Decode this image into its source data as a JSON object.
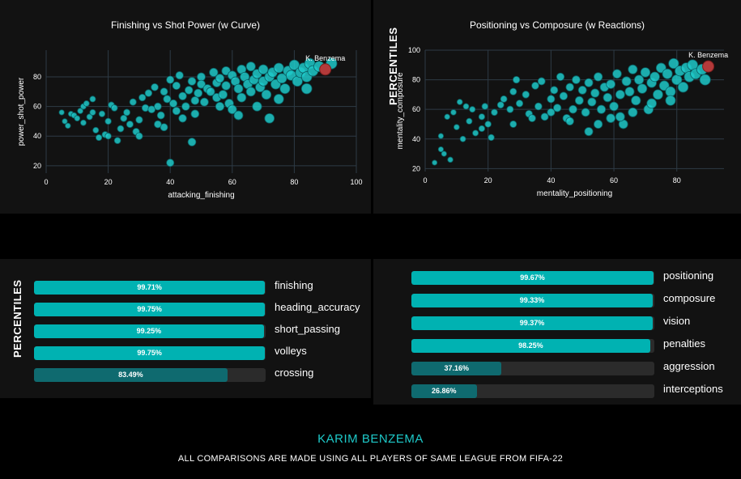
{
  "chart_data": [
    {
      "type": "scatter",
      "title": "Finishing vs Shot Power (w Curve)",
      "xlabel": "attacking_finishing",
      "ylabel": "power_shot_power",
      "xlim": [
        0,
        100
      ],
      "ylim": [
        15,
        98
      ],
      "xticks": [
        0,
        20,
        40,
        60,
        80,
        100
      ],
      "yticks": [
        20,
        40,
        60,
        80
      ],
      "grid": true,
      "highlight": {
        "label": "K. Benzema",
        "x": 90,
        "y": 85,
        "color": "#b33a3a"
      },
      "point_color": "#1ec9c9",
      "points": [
        [
          5,
          56
        ],
        [
          6,
          50
        ],
        [
          7,
          47
        ],
        [
          8,
          55
        ],
        [
          9,
          54
        ],
        [
          10,
          52
        ],
        [
          11,
          57
        ],
        [
          12,
          49
        ],
        [
          12,
          60
        ],
        [
          13,
          62
        ],
        [
          14,
          53
        ],
        [
          15,
          56
        ],
        [
          15,
          65
        ],
        [
          16,
          44
        ],
        [
          17,
          39
        ],
        [
          18,
          55
        ],
        [
          19,
          41
        ],
        [
          20,
          50
        ],
        [
          20,
          40
        ],
        [
          21,
          61
        ],
        [
          22,
          59
        ],
        [
          23,
          37
        ],
        [
          24,
          45
        ],
        [
          25,
          52
        ],
        [
          26,
          56
        ],
        [
          27,
          48
        ],
        [
          28,
          63
        ],
        [
          29,
          43
        ],
        [
          30,
          51
        ],
        [
          31,
          66
        ],
        [
          32,
          59
        ],
        [
          33,
          69
        ],
        [
          34,
          58
        ],
        [
          35,
          73
        ],
        [
          36,
          60
        ],
        [
          37,
          54
        ],
        [
          38,
          70
        ],
        [
          38,
          46
        ],
        [
          39,
          65
        ],
        [
          40,
          78
        ],
        [
          40,
          22
        ],
        [
          41,
          62
        ],
        [
          42,
          74
        ],
        [
          42,
          57
        ],
        [
          43,
          81
        ],
        [
          44,
          67
        ],
        [
          45,
          60
        ],
        [
          46,
          71
        ],
        [
          47,
          77
        ],
        [
          47,
          36
        ],
        [
          48,
          55
        ],
        [
          49,
          69
        ],
        [
          50,
          80
        ],
        [
          50,
          75
        ],
        [
          51,
          63
        ],
        [
          52,
          72
        ],
        [
          53,
          70
        ],
        [
          54,
          83
        ],
        [
          55,
          66
        ],
        [
          55,
          76
        ],
        [
          56,
          79
        ],
        [
          57,
          68
        ],
        [
          58,
          74
        ],
        [
          58,
          84
        ],
        [
          59,
          62
        ],
        [
          60,
          81
        ],
        [
          60,
          58
        ],
        [
          61,
          77
        ],
        [
          62,
          72
        ],
        [
          63,
          85
        ],
        [
          63,
          66
        ],
        [
          64,
          80
        ],
        [
          65,
          75
        ],
        [
          66,
          70
        ],
        [
          66,
          87
        ],
        [
          67,
          78
        ],
        [
          68,
          82
        ],
        [
          69,
          73
        ],
        [
          70,
          77
        ],
        [
          70,
          85
        ],
        [
          71,
          68
        ],
        [
          72,
          80
        ],
        [
          73,
          83
        ],
        [
          74,
          75
        ],
        [
          75,
          86
        ],
        [
          76,
          79
        ],
        [
          77,
          72
        ],
        [
          78,
          84
        ],
        [
          79,
          81
        ],
        [
          80,
          88
        ],
        [
          81,
          77
        ],
        [
          82,
          83
        ],
        [
          83,
          86
        ],
        [
          84,
          80
        ],
        [
          85,
          89
        ],
        [
          86,
          84
        ],
        [
          88,
          87
        ],
        [
          92,
          89
        ],
        [
          84,
          72
        ],
        [
          68,
          60
        ],
        [
          62,
          54
        ],
        [
          75,
          65
        ],
        [
          48,
          64
        ],
        [
          44,
          52
        ],
        [
          56,
          60
        ],
        [
          72,
          52
        ],
        [
          36,
          48
        ],
        [
          30,
          40
        ]
      ]
    },
    {
      "type": "scatter",
      "title": "Positioning vs Composure (w Reactions)",
      "xlabel": "mentality_positioning",
      "ylabel": "mentality_composure",
      "xlim": [
        0,
        95
      ],
      "ylim": [
        18,
        100
      ],
      "xticks": [
        0,
        20,
        40,
        60,
        80
      ],
      "yticks": [
        20,
        40,
        60,
        80,
        100
      ],
      "grid": true,
      "highlight": {
        "label": "K. Benzema",
        "x": 90,
        "y": 89,
        "color": "#b33a3a"
      },
      "point_color": "#1ec9c9",
      "points": [
        [
          3,
          24
        ],
        [
          5,
          33
        ],
        [
          5,
          42
        ],
        [
          6,
          30
        ],
        [
          7,
          55
        ],
        [
          8,
          26
        ],
        [
          9,
          58
        ],
        [
          10,
          48
        ],
        [
          11,
          65
        ],
        [
          12,
          40
        ],
        [
          13,
          62
        ],
        [
          14,
          52
        ],
        [
          15,
          60
        ],
        [
          16,
          44
        ],
        [
          18,
          55
        ],
        [
          19,
          62
        ],
        [
          20,
          50
        ],
        [
          21,
          41
        ],
        [
          22,
          58
        ],
        [
          24,
          63
        ],
        [
          25,
          67
        ],
        [
          27,
          60
        ],
        [
          28,
          72
        ],
        [
          29,
          80
        ],
        [
          30,
          64
        ],
        [
          32,
          70
        ],
        [
          33,
          57
        ],
        [
          35,
          76
        ],
        [
          36,
          62
        ],
        [
          37,
          79
        ],
        [
          38,
          55
        ],
        [
          40,
          67
        ],
        [
          41,
          73
        ],
        [
          42,
          61
        ],
        [
          43,
          82
        ],
        [
          44,
          69
        ],
        [
          45,
          54
        ],
        [
          46,
          75
        ],
        [
          47,
          60
        ],
        [
          48,
          80
        ],
        [
          49,
          66
        ],
        [
          50,
          73
        ],
        [
          51,
          58
        ],
        [
          52,
          78
        ],
        [
          53,
          65
        ],
        [
          54,
          71
        ],
        [
          55,
          82
        ],
        [
          56,
          60
        ],
        [
          57,
          75
        ],
        [
          58,
          68
        ],
        [
          59,
          77
        ],
        [
          60,
          62
        ],
        [
          61,
          84
        ],
        [
          62,
          70
        ],
        [
          63,
          50
        ],
        [
          64,
          79
        ],
        [
          65,
          72
        ],
        [
          66,
          87
        ],
        [
          67,
          66
        ],
        [
          68,
          80
        ],
        [
          69,
          74
        ],
        [
          70,
          85
        ],
        [
          71,
          60
        ],
        [
          72,
          78
        ],
        [
          73,
          82
        ],
        [
          74,
          70
        ],
        [
          75,
          88
        ],
        [
          76,
          76
        ],
        [
          77,
          84
        ],
        [
          78,
          72
        ],
        [
          79,
          91
        ],
        [
          80,
          80
        ],
        [
          81,
          86
        ],
        [
          82,
          75
        ],
        [
          83,
          88
        ],
        [
          84,
          82
        ],
        [
          85,
          90
        ],
        [
          86,
          84
        ],
        [
          88,
          87
        ],
        [
          89,
          80
        ],
        [
          55,
          50
        ],
        [
          59,
          54
        ],
        [
          66,
          58
        ],
        [
          52,
          45
        ],
        [
          72,
          64
        ],
        [
          78,
          66
        ],
        [
          62,
          55
        ],
        [
          46,
          52
        ],
        [
          40,
          58
        ],
        [
          34,
          54
        ],
        [
          28,
          50
        ],
        [
          18,
          47
        ]
      ]
    }
  ],
  "percentiles": {
    "axis_title": "PERCENTILES",
    "fill_high": "#00b2b2",
    "fill_low": "#0f6a6f",
    "left": [
      {
        "stat": "finishing",
        "value": 99.71,
        "display": "99.71%"
      },
      {
        "stat": "heading_accuracy",
        "value": 99.75,
        "display": "99.75%"
      },
      {
        "stat": "short_passing",
        "value": 99.25,
        "display": "99.25%"
      },
      {
        "stat": "volleys",
        "value": 99.75,
        "display": "99.75%"
      },
      {
        "stat": "crossing",
        "value": 83.49,
        "display": "83.49%"
      }
    ],
    "right": [
      {
        "stat": "positioning",
        "value": 99.67,
        "display": "99.67%"
      },
      {
        "stat": "composure",
        "value": 99.33,
        "display": "99.33%"
      },
      {
        "stat": "vision",
        "value": 99.37,
        "display": "99.37%"
      },
      {
        "stat": "penalties",
        "value": 98.25,
        "display": "98.25%"
      },
      {
        "stat": "aggression",
        "value": 37.16,
        "display": "37.16%"
      },
      {
        "stat": "interceptions",
        "value": 26.86,
        "display": "26.86%"
      }
    ]
  },
  "footer": {
    "player_name": "KARIM BENZEMA",
    "note": "ALL COMPARISONS ARE MADE USING ALL PLAYERS OF SAME LEAGUE FROM FIFA-22"
  }
}
